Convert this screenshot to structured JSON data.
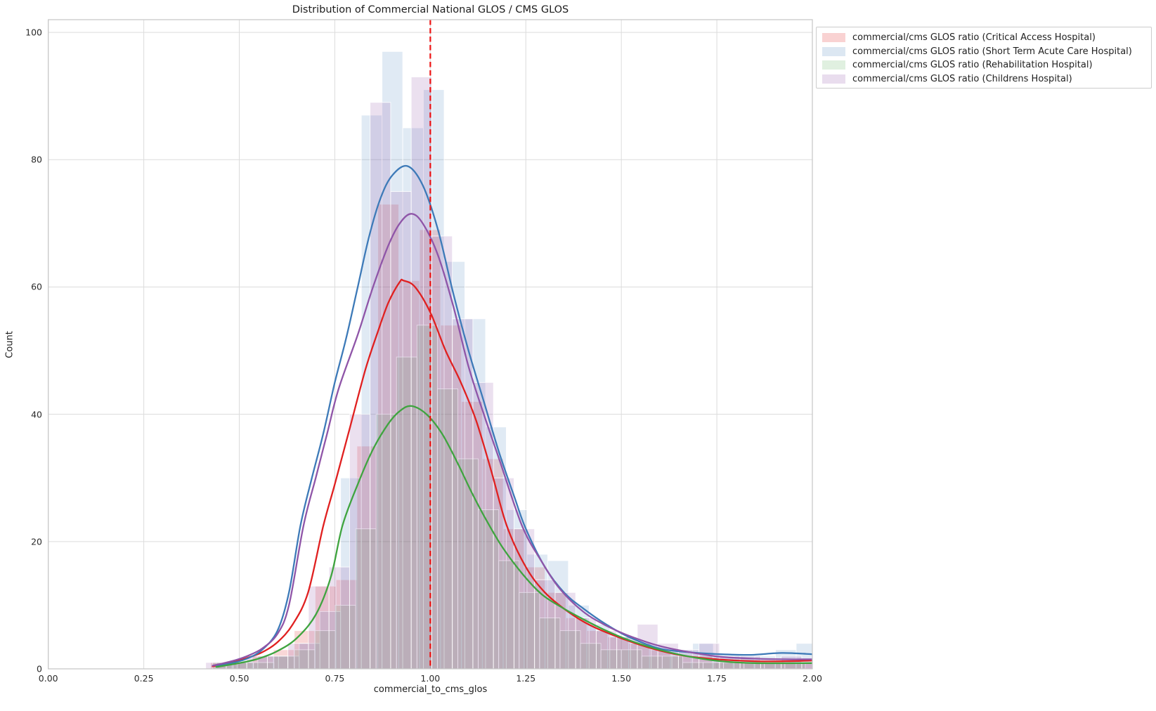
{
  "chart_data": {
    "type": "histogram+kde",
    "title": "Distribution of Commercial National GLOS / CMS GLOS",
    "xlabel": "commercial_to_cms_glos",
    "ylabel": "Count",
    "xlim": [
      0,
      2.0
    ],
    "ylim": [
      0,
      102
    ],
    "grid": true,
    "x_ticks": {
      "values": [
        0,
        0.25,
        0.5,
        0.75,
        1.0,
        1.25,
        1.5,
        1.75,
        2.0
      ],
      "labels": [
        "0.00",
        "0.25",
        "0.50",
        "0.75",
        "1.00",
        "1.25",
        "1.50",
        "1.75",
        "2.00"
      ]
    },
    "y_ticks": {
      "values": [
        0,
        20,
        40,
        60,
        80,
        100
      ],
      "labels": [
        "0",
        "20",
        "40",
        "60",
        "80",
        "100"
      ]
    },
    "reference_line": {
      "x": 1.0,
      "color": "#ee1414",
      "style": "dashed"
    },
    "legend_position": "upper right, outside plot",
    "series": [
      {
        "name": "critical-access-hospital",
        "label": "commercial/cms GLOS ratio (Critical Access Hospital)",
        "line_color": "#e02020",
        "fill_opacity": 0.18,
        "bins": {
          "start": 0.425,
          "width": 0.0547,
          "counts": [
            1,
            1,
            2,
            3,
            6,
            13,
            14,
            35,
            73,
            61,
            69,
            54,
            42,
            33,
            22,
            16,
            12,
            8,
            6,
            5,
            4,
            3,
            2,
            2,
            1,
            1,
            1,
            1,
            1
          ]
        },
        "kde": [
          [
            0.43,
            0.4
          ],
          [
            0.48,
            1.0
          ],
          [
            0.52,
            1.7
          ],
          [
            0.56,
            2.6
          ],
          [
            0.6,
            4.2
          ],
          [
            0.64,
            7.0
          ],
          [
            0.68,
            12.0
          ],
          [
            0.72,
            22.5
          ],
          [
            0.75,
            29.0
          ],
          [
            0.79,
            38.0
          ],
          [
            0.83,
            47.0
          ],
          [
            0.86,
            52.5
          ],
          [
            0.89,
            57.5
          ],
          [
            0.92,
            60.8
          ],
          [
            0.93,
            61.0
          ],
          [
            0.96,
            60.0
          ],
          [
            1.0,
            56.0
          ],
          [
            1.04,
            50.0
          ],
          [
            1.08,
            45.0
          ],
          [
            1.12,
            39.0
          ],
          [
            1.16,
            31.0
          ],
          [
            1.2,
            22.5
          ],
          [
            1.25,
            16.0
          ],
          [
            1.3,
            12.0
          ],
          [
            1.36,
            9.0
          ],
          [
            1.42,
            6.8
          ],
          [
            1.5,
            4.8
          ],
          [
            1.58,
            3.2
          ],
          [
            1.66,
            2.1
          ],
          [
            1.75,
            1.5
          ],
          [
            1.85,
            1.2
          ],
          [
            1.93,
            1.2
          ],
          [
            2.0,
            1.3
          ]
        ]
      },
      {
        "name": "short-term-acute-care-hospital",
        "label": "commercial/cms GLOS ratio (Short Term Acute Care Hospital)",
        "line_color": "#3d7ab8",
        "fill_opacity": 0.16,
        "bins": {
          "start": 0.44,
          "width": 0.0542,
          "counts": [
            1,
            1,
            2,
            2,
            4,
            9,
            30,
            87,
            97,
            85,
            91,
            64,
            55,
            38,
            25,
            18,
            17,
            10,
            7,
            5,
            4,
            3,
            3,
            4,
            2,
            2,
            2,
            3,
            4
          ]
        },
        "kde": [
          [
            0.44,
            0.4
          ],
          [
            0.48,
            0.9
          ],
          [
            0.52,
            1.6
          ],
          [
            0.56,
            3.0
          ],
          [
            0.6,
            6.0
          ],
          [
            0.63,
            12.0
          ],
          [
            0.66,
            22.5
          ],
          [
            0.69,
            30.0
          ],
          [
            0.72,
            37.0
          ],
          [
            0.75,
            45.0
          ],
          [
            0.78,
            52.0
          ],
          [
            0.81,
            60.0
          ],
          [
            0.84,
            68.0
          ],
          [
            0.87,
            74.0
          ],
          [
            0.9,
            77.5
          ],
          [
            0.94,
            79.0
          ],
          [
            0.98,
            76.0
          ],
          [
            1.02,
            69.0
          ],
          [
            1.06,
            59.0
          ],
          [
            1.1,
            50.0
          ],
          [
            1.14,
            42.0
          ],
          [
            1.18,
            34.0
          ],
          [
            1.22,
            27.0
          ],
          [
            1.25,
            22.0
          ],
          [
            1.3,
            16.0
          ],
          [
            1.35,
            12.0
          ],
          [
            1.4,
            9.5
          ],
          [
            1.46,
            7.0
          ],
          [
            1.52,
            5.0
          ],
          [
            1.6,
            3.2
          ],
          [
            1.68,
            2.6
          ],
          [
            1.76,
            2.3
          ],
          [
            1.84,
            2.2
          ],
          [
            1.92,
            2.5
          ],
          [
            2.0,
            2.3
          ]
        ]
      },
      {
        "name": "rehabilitation-hospital",
        "label": "commercial/cms GLOS ratio (Rehabilitation Hospital)",
        "line_color": "#3fa43f",
        "fill_opacity": 0.14,
        "bins": {
          "start": 0.43,
          "width": 0.0535,
          "counts": [
            1,
            1,
            1,
            2,
            3,
            6,
            10,
            22,
            40,
            49,
            54,
            44,
            33,
            25,
            17,
            12,
            8,
            6,
            4,
            3,
            3,
            2,
            2,
            1,
            1,
            1,
            1,
            1,
            1
          ]
        },
        "kde": [
          [
            0.44,
            0.3
          ],
          [
            0.5,
            0.9
          ],
          [
            0.55,
            1.6
          ],
          [
            0.6,
            2.8
          ],
          [
            0.65,
            4.8
          ],
          [
            0.7,
            8.5
          ],
          [
            0.74,
            14.5
          ],
          [
            0.77,
            22.5
          ],
          [
            0.81,
            29.0
          ],
          [
            0.85,
            34.5
          ],
          [
            0.89,
            38.5
          ],
          [
            0.92,
            40.5
          ],
          [
            0.95,
            41.3
          ],
          [
            0.99,
            40.0
          ],
          [
            1.03,
            37.0
          ],
          [
            1.07,
            32.5
          ],
          [
            1.11,
            27.5
          ],
          [
            1.15,
            23.0
          ],
          [
            1.19,
            19.0
          ],
          [
            1.24,
            15.0
          ],
          [
            1.29,
            11.8
          ],
          [
            1.34,
            9.8
          ],
          [
            1.4,
            7.8
          ],
          [
            1.46,
            6.0
          ],
          [
            1.52,
            4.5
          ],
          [
            1.6,
            3.0
          ],
          [
            1.68,
            1.9
          ],
          [
            1.76,
            1.2
          ],
          [
            1.85,
            0.9
          ],
          [
            2.0,
            0.9
          ]
        ]
      },
      {
        "name": "childrens-hospital",
        "label": "commercial/cms GLOS ratio (Childrens Hospital)",
        "line_color": "#8f55a8",
        "fill_opacity": 0.18,
        "bins": {
          "start": 0.412,
          "width": 0.0538,
          "counts": [
            1,
            1,
            2,
            2,
            4,
            13,
            16,
            40,
            89,
            75,
            93,
            68,
            55,
            45,
            30,
            22,
            14,
            12,
            8,
            6,
            5,
            7,
            4,
            3,
            4,
            2,
            2,
            1,
            2,
            1
          ]
        },
        "kde": [
          [
            0.43,
            0.5
          ],
          [
            0.48,
            1.2
          ],
          [
            0.52,
            2.0
          ],
          [
            0.56,
            3.2
          ],
          [
            0.6,
            5.5
          ],
          [
            0.63,
            10.0
          ],
          [
            0.668,
            22.5
          ],
          [
            0.7,
            30.0
          ],
          [
            0.73,
            37.0
          ],
          [
            0.76,
            44.0
          ],
          [
            0.81,
            52.5
          ],
          [
            0.85,
            60.0
          ],
          [
            0.89,
            66.5
          ],
          [
            0.92,
            70.0
          ],
          [
            0.95,
            71.5
          ],
          [
            0.98,
            70.0
          ],
          [
            1.02,
            65.0
          ],
          [
            1.06,
            57.0
          ],
          [
            1.1,
            47.5
          ],
          [
            1.14,
            40.0
          ],
          [
            1.18,
            33.0
          ],
          [
            1.24,
            22.5
          ],
          [
            1.29,
            17.0
          ],
          [
            1.34,
            12.5
          ],
          [
            1.4,
            9.0
          ],
          [
            1.46,
            6.8
          ],
          [
            1.52,
            5.2
          ],
          [
            1.6,
            3.6
          ],
          [
            1.68,
            2.6
          ],
          [
            1.76,
            1.9
          ],
          [
            1.85,
            1.6
          ],
          [
            1.93,
            1.5
          ],
          [
            2.0,
            1.5
          ]
        ]
      }
    ],
    "style": {
      "grid_color": "#dcdcdc",
      "border_color": "#c9c9c9",
      "background": "#ffffff",
      "bar_edge_color": "#ffffff"
    }
  }
}
